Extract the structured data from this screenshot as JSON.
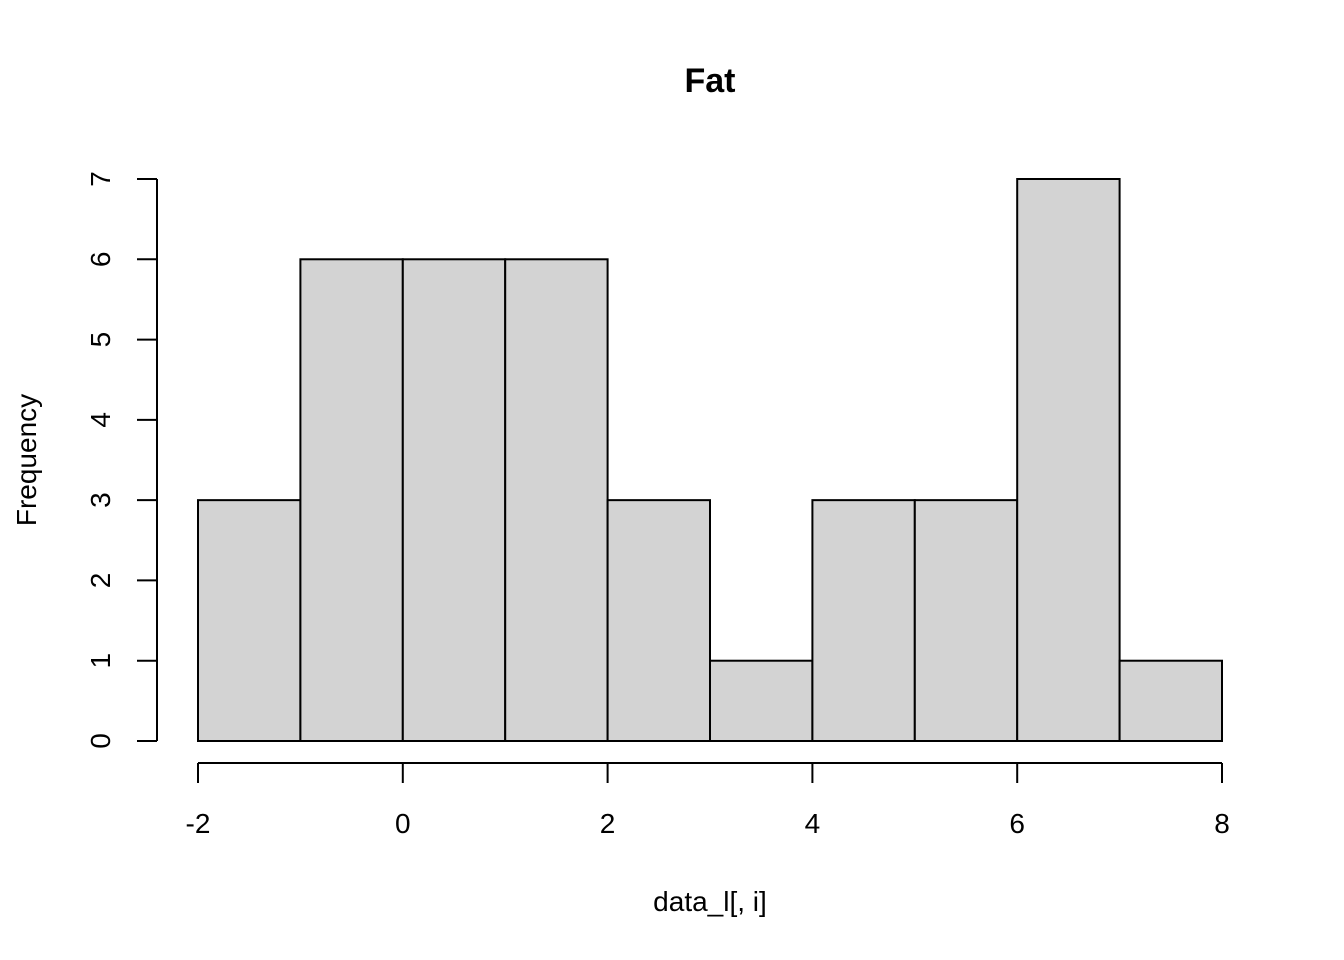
{
  "chart_data": {
    "type": "bar",
    "title": "Fat",
    "xlabel": "data_l[, i]",
    "ylabel": "Frequency",
    "bins": [
      {
        "from": -2,
        "to": -1,
        "count": 3
      },
      {
        "from": -1,
        "to": 0,
        "count": 6
      },
      {
        "from": 0,
        "to": 1,
        "count": 6
      },
      {
        "from": 1,
        "to": 2,
        "count": 6
      },
      {
        "from": 2,
        "to": 3,
        "count": 3
      },
      {
        "from": 3,
        "to": 4,
        "count": 1
      },
      {
        "from": 4,
        "to": 5,
        "count": 3
      },
      {
        "from": 5,
        "to": 6,
        "count": 3
      },
      {
        "from": 6,
        "to": 7,
        "count": 7
      },
      {
        "from": 7,
        "to": 8,
        "count": 1
      }
    ],
    "xlim": [
      -2,
      8
    ],
    "ylim": [
      0,
      7
    ],
    "x_ticks": [
      -2,
      0,
      2,
      4,
      6,
      8
    ],
    "y_ticks": [
      0,
      1,
      2,
      3,
      4,
      5,
      6,
      7
    ],
    "x_tick_labels": [
      "-2",
      "0",
      "2",
      "4",
      "6",
      "8"
    ],
    "y_tick_labels": [
      "0",
      "1",
      "2",
      "3",
      "4",
      "5",
      "6",
      "7"
    ],
    "grid": false,
    "bar_color": "#d3d3d3",
    "edge_color": "#000000"
  }
}
